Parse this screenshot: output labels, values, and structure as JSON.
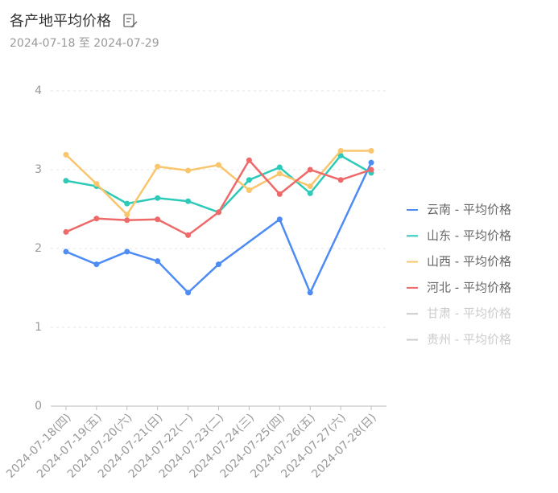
{
  "chart_data": {
    "type": "line",
    "title": "各产地平均价格",
    "subtitle": "2024-07-18 至 2024-07-29",
    "categories": [
      "2024-07-18(四)",
      "2024-07-19(五)",
      "2024-07-20(六)",
      "2024-07-21(日)",
      "2024-07-22(一)",
      "2024-07-23(二)",
      "2024-07-24(三)",
      "2024-07-25(四)",
      "2024-07-26(五)",
      "2024-07-27(六)",
      "2024-07-28(日)"
    ],
    "series": [
      {
        "name": "云南 - 平均价格",
        "color": "#4e8cf4",
        "values": [
          1.96,
          1.8,
          1.96,
          1.84,
          1.44,
          1.8,
          null,
          2.37,
          1.44,
          null,
          3.09
        ]
      },
      {
        "name": "山东 - 平均价格",
        "color": "#2ecab8",
        "values": [
          2.86,
          2.79,
          2.57,
          2.64,
          2.6,
          2.46,
          2.87,
          3.03,
          2.7,
          3.18,
          2.96
        ]
      },
      {
        "name": "山西 - 平均价格",
        "color": "#f9c56d",
        "values": [
          3.19,
          2.82,
          2.43,
          3.04,
          2.99,
          3.06,
          2.74,
          2.95,
          2.79,
          3.24,
          3.24
        ]
      },
      {
        "name": "河北 - 平均价格",
        "color": "#ee6a6a",
        "values": [
          2.21,
          2.38,
          2.36,
          2.37,
          2.17,
          2.46,
          3.12,
          2.69,
          3.0,
          2.87,
          3.0
        ]
      },
      {
        "name": "甘肃 - 平均价格",
        "visible": false,
        "values": [
          null,
          null,
          null,
          null,
          null,
          null,
          null,
          null,
          null,
          null,
          null
        ]
      },
      {
        "name": "贵州 - 平均价格",
        "visible": false,
        "values": [
          null,
          null,
          null,
          null,
          null,
          null,
          null,
          null,
          null,
          null,
          null
        ]
      }
    ],
    "connect_nulls": true,
    "ylim": [
      0,
      4
    ],
    "yticks": [
      0,
      1,
      2,
      3,
      4
    ],
    "grid": true,
    "legend": "right"
  }
}
